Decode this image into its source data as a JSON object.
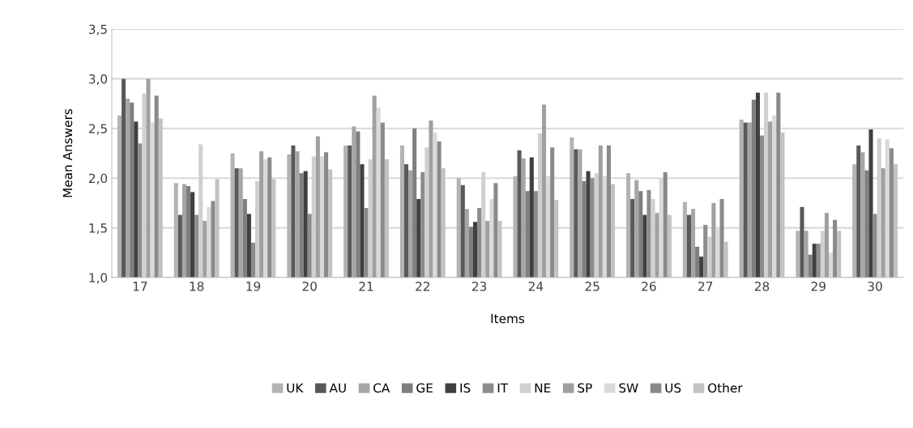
{
  "chart_data": {
    "type": "bar",
    "xlabel": "Items",
    "ylabel": "Mean Answers",
    "categories": [
      "17",
      "18",
      "19",
      "20",
      "21",
      "22",
      "23",
      "24",
      "25",
      "26",
      "27",
      "28",
      "29",
      "30"
    ],
    "ylim": [
      1.0,
      3.5
    ],
    "yticks": [
      {
        "value": 1.0,
        "label": "1,0"
      },
      {
        "value": 1.5,
        "label": "1,5"
      },
      {
        "value": 2.0,
        "label": "2,0"
      },
      {
        "value": 2.5,
        "label": "2,5"
      },
      {
        "value": 3.0,
        "label": "3,0"
      },
      {
        "value": 3.5,
        "label": "3,5"
      }
    ],
    "grid": "y",
    "legend": "bottom",
    "series": [
      {
        "name": "UK",
        "color": "#b3b3b3",
        "values": [
          2.63,
          1.95,
          2.25,
          2.24,
          2.33,
          2.33,
          2.0,
          2.02,
          2.41,
          2.05,
          1.76,
          2.59,
          1.47,
          2.14
        ]
      },
      {
        "name": "AU",
        "color": "#595959",
        "values": [
          3.0,
          1.63,
          2.1,
          2.33,
          2.33,
          2.14,
          1.93,
          2.28,
          2.29,
          1.79,
          1.63,
          2.56,
          1.71,
          2.33
        ]
      },
      {
        "name": "CA",
        "color": "#a6a6a6",
        "values": [
          2.8,
          1.94,
          2.1,
          2.27,
          2.52,
          2.08,
          1.69,
          2.2,
          2.29,
          1.98,
          1.69,
          2.56,
          1.47,
          2.26
        ]
      },
      {
        "name": "GE",
        "color": "#7f7f7f",
        "values": [
          2.76,
          1.92,
          1.79,
          2.05,
          2.47,
          2.5,
          1.51,
          1.87,
          1.97,
          1.87,
          1.31,
          2.79,
          1.23,
          2.08
        ]
      },
      {
        "name": "IS",
        "color": "#404040",
        "values": [
          2.57,
          1.86,
          1.64,
          2.07,
          2.14,
          1.79,
          1.56,
          2.21,
          2.07,
          1.63,
          1.21,
          2.86,
          1.34,
          2.49
        ]
      },
      {
        "name": "IT",
        "color": "#8c8c8c",
        "values": [
          2.35,
          1.63,
          1.35,
          1.64,
          1.7,
          2.06,
          1.7,
          1.87,
          2.0,
          1.88,
          1.53,
          2.43,
          1.34,
          1.64
        ]
      },
      {
        "name": "NE",
        "color": "#d0d0d0",
        "values": [
          2.85,
          2.34,
          1.97,
          2.22,
          2.19,
          2.31,
          2.06,
          2.45,
          2.05,
          1.79,
          1.41,
          2.86,
          1.47,
          2.4
        ]
      },
      {
        "name": "SP",
        "color": "#a0a0a0",
        "values": [
          3.0,
          1.57,
          2.27,
          2.42,
          2.83,
          2.58,
          1.57,
          2.74,
          2.33,
          1.65,
          1.75,
          2.57,
          1.65,
          2.1
        ]
      },
      {
        "name": "SW",
        "color": "#dadada",
        "values": [
          2.56,
          1.71,
          2.19,
          2.22,
          2.71,
          2.46,
          1.79,
          2.02,
          2.02,
          2.0,
          1.5,
          2.63,
          1.25,
          2.39
        ]
      },
      {
        "name": "US",
        "color": "#8a8a8a",
        "values": [
          2.83,
          1.77,
          2.21,
          2.26,
          2.56,
          2.37,
          1.95,
          2.31,
          2.33,
          2.06,
          1.79,
          2.86,
          1.58,
          2.3
        ]
      },
      {
        "name": "Other",
        "color": "#c2c2c2",
        "values": [
          2.6,
          1.99,
          1.99,
          2.09,
          2.19,
          2.1,
          1.57,
          1.78,
          1.94,
          1.63,
          1.36,
          2.46,
          1.47,
          2.14
        ]
      }
    ]
  }
}
